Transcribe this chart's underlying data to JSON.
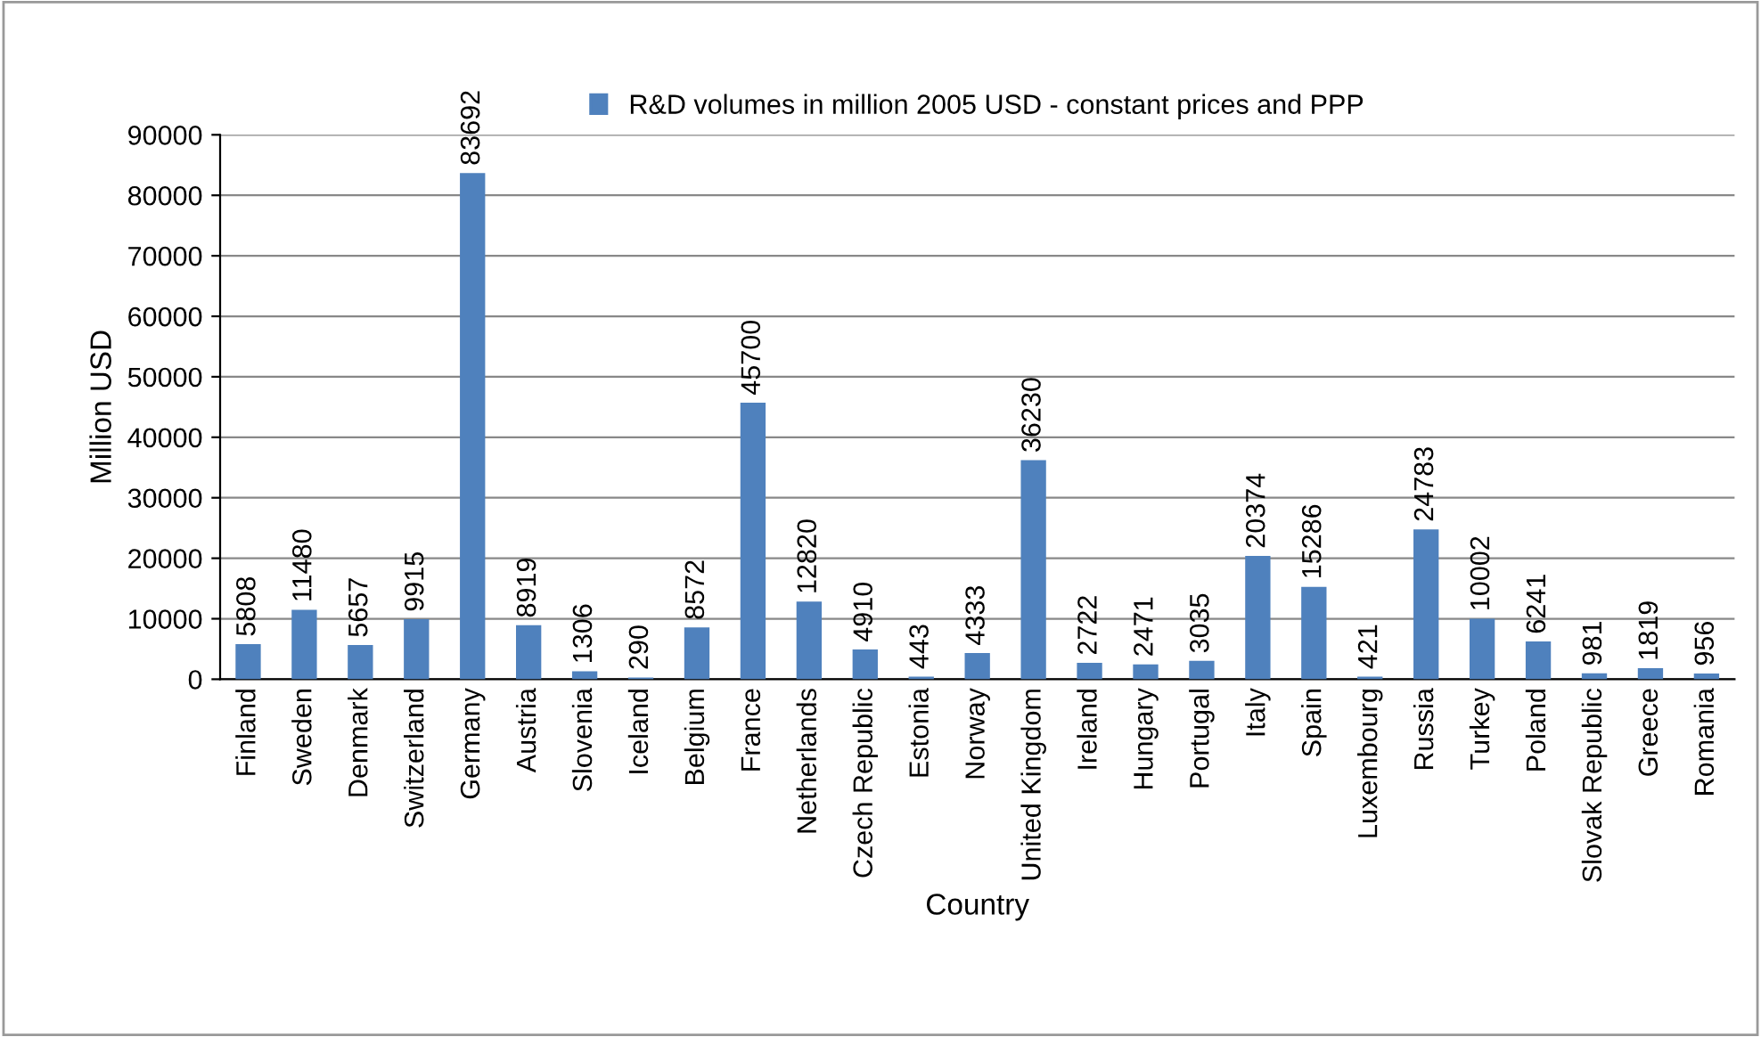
{
  "chart_data": {
    "type": "bar",
    "categories": [
      "Finland",
      "Sweden",
      "Denmark",
      "Switzerland",
      "Germany",
      "Austria",
      "Slovenia",
      "Iceland",
      "Belgium",
      "France",
      "Netherlands",
      "Czech Republic",
      "Estonia",
      "Norway",
      "United Kingdom",
      "Ireland",
      "Hungary",
      "Portugal",
      "Italy",
      "Spain",
      "Luxembourg",
      "Russia",
      "Turkey",
      "Poland",
      "Slovak Republic",
      "Greece",
      "Romania"
    ],
    "series": [
      {
        "name": "R&D volumes in million 2005 USD - constant prices and PPP",
        "color": "#4f81bd",
        "values": [
          5808,
          11480,
          5657,
          9915,
          83692,
          8919,
          1306,
          290,
          8572,
          45700,
          12820,
          4910,
          443,
          4333,
          36230,
          2722,
          2471,
          3035,
          20374,
          15286,
          421,
          24783,
          10002,
          6241,
          981,
          1819,
          956
        ]
      }
    ],
    "xlabel": "Country",
    "ylabel": "Million USD",
    "ylim": [
      0,
      90000
    ],
    "yticks": [
      0,
      10000,
      20000,
      30000,
      40000,
      50000,
      60000,
      70000,
      80000,
      90000
    ],
    "grid": "y",
    "legend": "top",
    "data_labels": true
  }
}
